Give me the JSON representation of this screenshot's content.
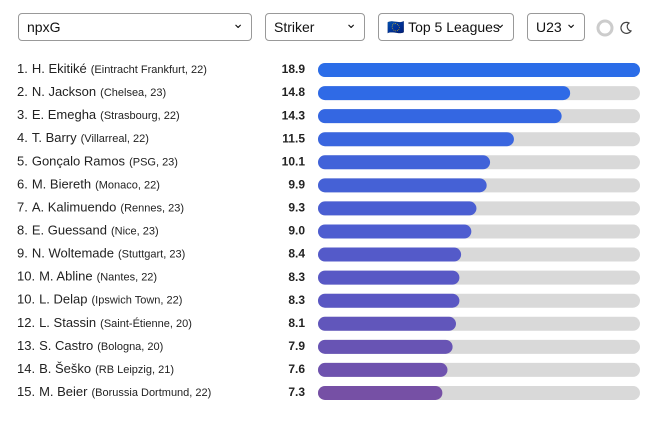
{
  "controls": {
    "metric": "npxG",
    "position": "Striker",
    "league": "🇪🇺 Top 5 Leagues",
    "age": "U23"
  },
  "chart_data": {
    "type": "bar",
    "ranks": [
      "1.",
      "2.",
      "3.",
      "4.",
      "5.",
      "6.",
      "7.",
      "8.",
      "9.",
      "10.",
      "10.",
      "12.",
      "13.",
      "14.",
      "15."
    ],
    "categories": [
      "H. Ekitiké",
      "N. Jackson",
      "E. Emegha",
      "T. Barry",
      "Gonçalo Ramos",
      "M. Biereth",
      "A. Kalimuendo",
      "E. Guessand",
      "N. Woltemade",
      "M. Abline",
      "L. Delap",
      "L. Stassin",
      "S. Castro",
      "B. Šeško",
      "M. Beier"
    ],
    "details": [
      "(Eintracht Frankfurt, 22)",
      "(Chelsea, 23)",
      "(Strasbourg, 22)",
      "(Villarreal, 22)",
      "(PSG, 23)",
      "(Monaco, 22)",
      "(Rennes, 23)",
      "(Nice, 23)",
      "(Stuttgart, 23)",
      "(Nantes, 22)",
      "(Ipswich Town, 22)",
      "(Saint-Étienne, 20)",
      "(Bologna, 20)",
      "(RB Leipzig, 21)",
      "(Borussia Dortmund, 22)"
    ],
    "values": [
      18.9,
      14.8,
      14.3,
      11.5,
      10.1,
      9.9,
      9.3,
      9.0,
      8.4,
      8.3,
      8.3,
      8.1,
      7.9,
      7.6,
      7.3
    ],
    "value_labels": [
      "18.9",
      "14.8",
      "14.3",
      "11.5",
      "10.1",
      "9.9",
      "9.3",
      "9.0",
      "8.4",
      "8.3",
      "8.3",
      "8.1",
      "7.9",
      "7.6",
      "7.3"
    ],
    "colors": [
      "#2b6de8",
      "#2f6ae6",
      "#3467e2",
      "#3a66df",
      "#4163d9",
      "#4561d6",
      "#4a5ed2",
      "#4e5dd0",
      "#545ac9",
      "#5858c5",
      "#5a57c3",
      "#6156bb",
      "#6854b4",
      "#6e52ae",
      "#7650a5"
    ],
    "xlim": [
      0,
      18.9
    ]
  }
}
